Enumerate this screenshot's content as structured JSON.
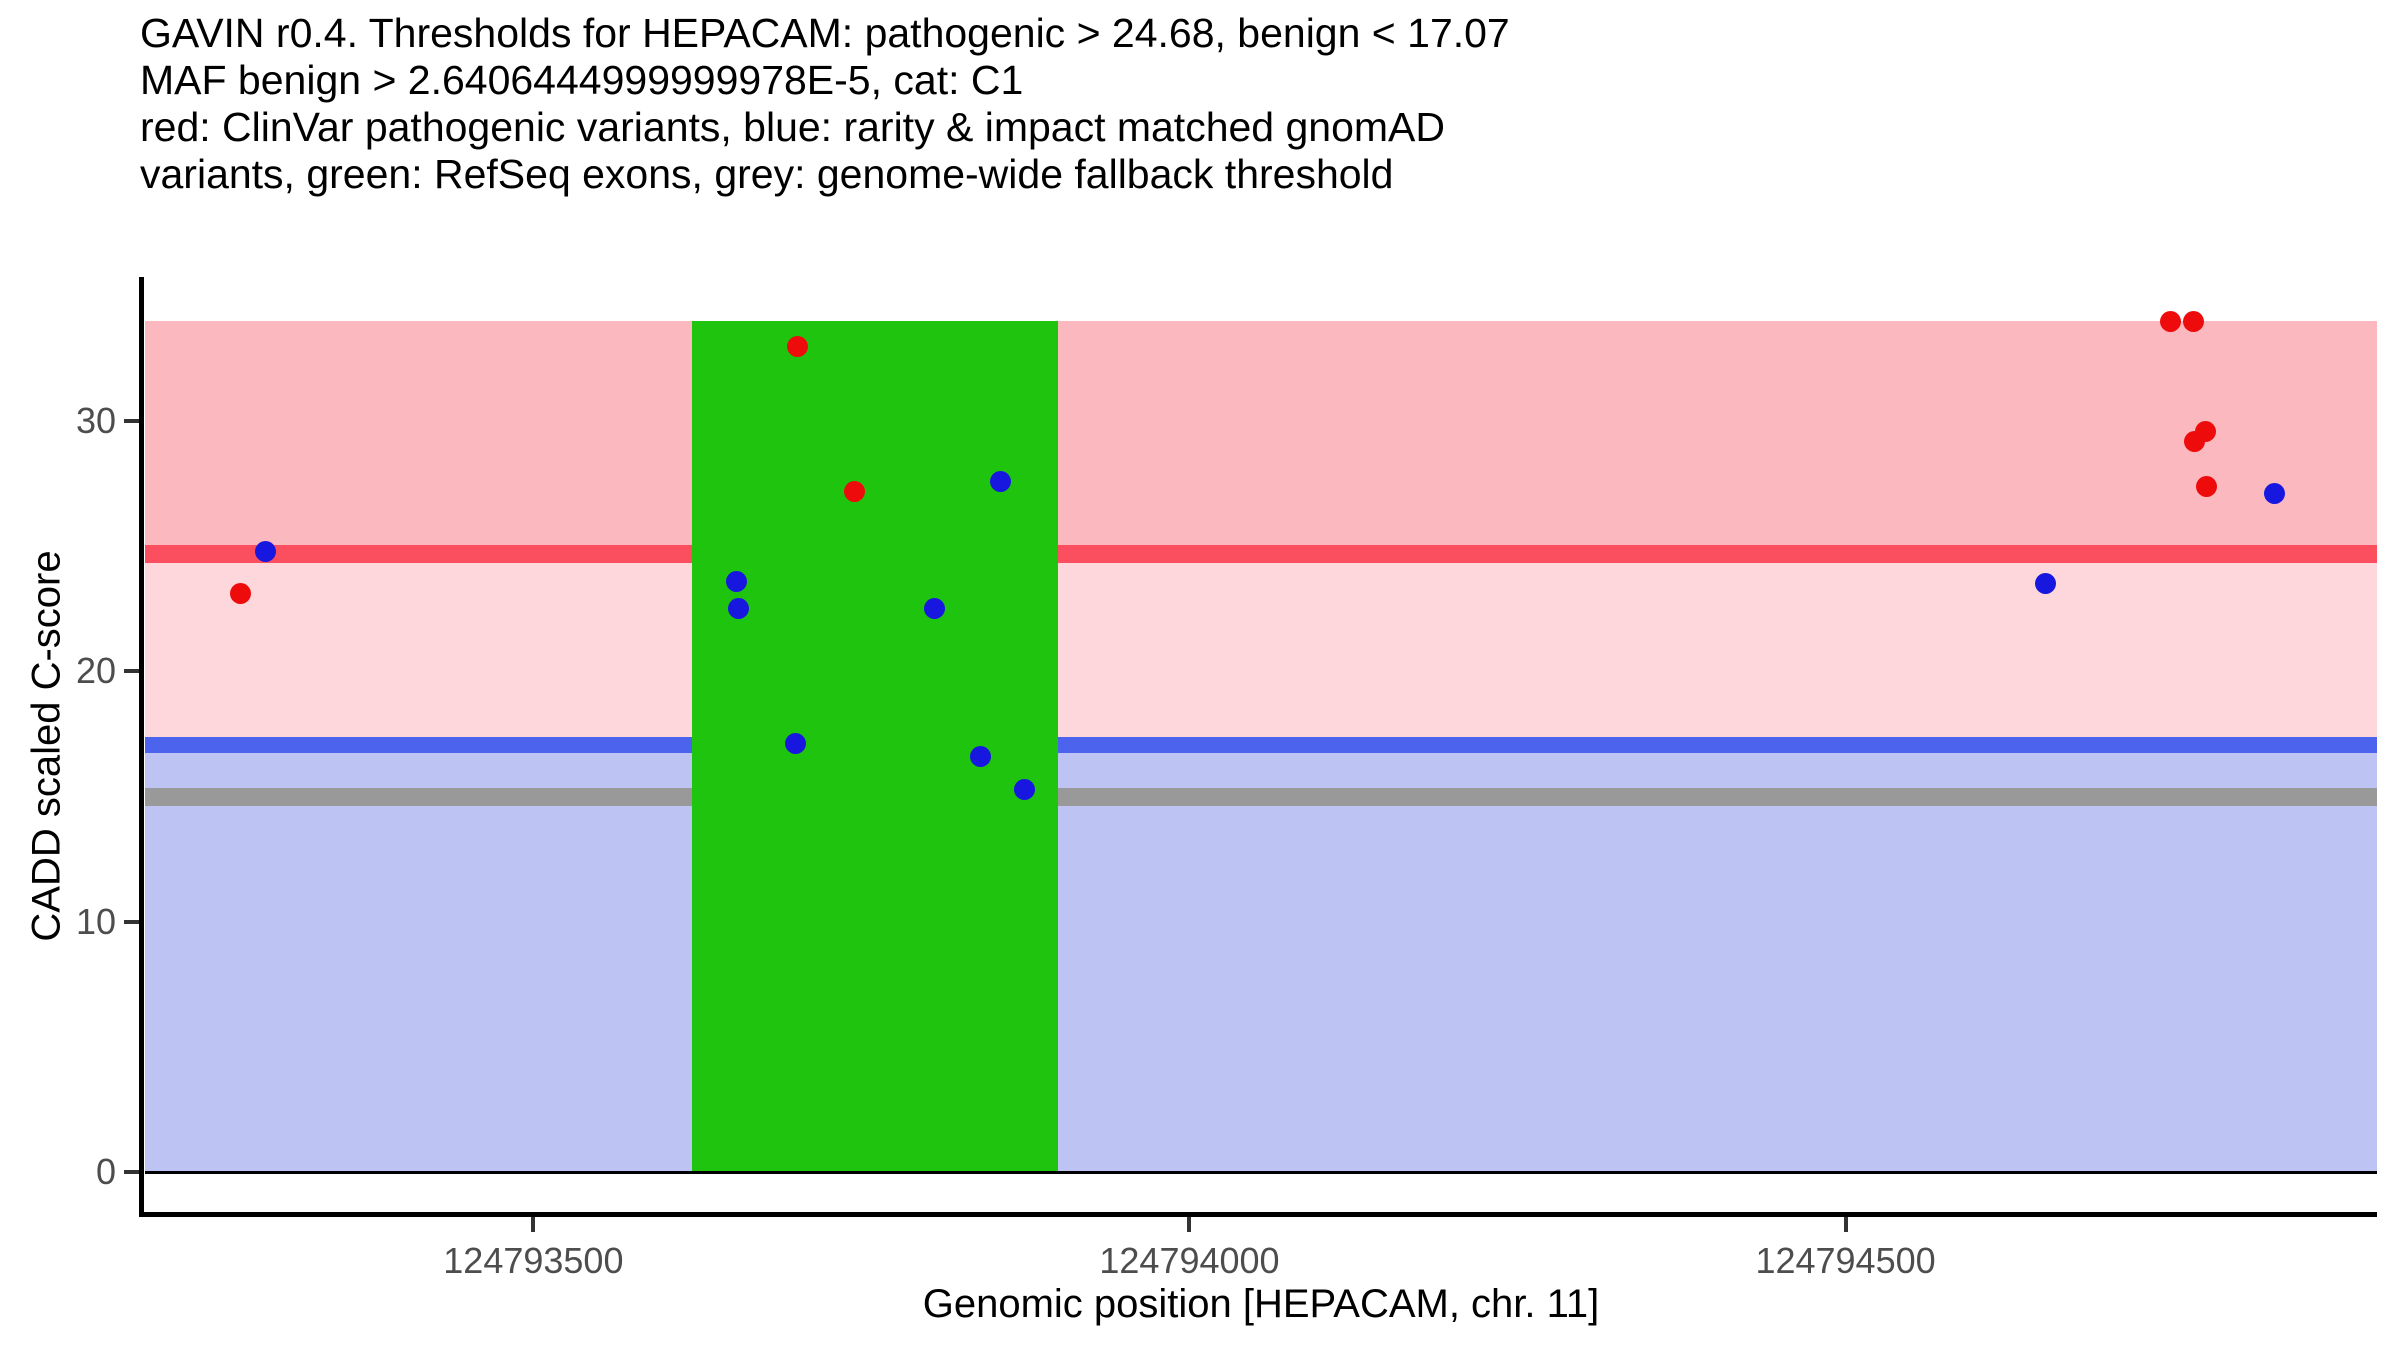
{
  "title": {
    "lines": [
      "GAVIN r0.4. Thresholds for HEPACAM: pathogenic > 24.68, benign < 17.07",
      "MAF benign > 2.6406444999999978E-5, cat: C1",
      "red: ClinVar pathogenic variants, blue: rarity & impact matched gnomAD",
      "variants, green: RefSeq exons, grey: genome-wide fallback threshold"
    ]
  },
  "chart_data": {
    "type": "scatter",
    "title": "GAVIN r0.4. Thresholds for HEPACAM: pathogenic > 24.68, benign < 17.07",
    "subtitle": "MAF benign > 2.6406444999999978E-5, cat: C1",
    "legend_note": "red: ClinVar pathogenic variants, blue: rarity & impact matched gnomAD variants, green: RefSeq exons, grey: genome-wide fallback threshold",
    "xlabel": "Genomic position [HEPACAM, chr. 11]",
    "ylabel": "CADD scaled C-score",
    "gene": "HEPACAM",
    "chromosome": "11",
    "gavin_version": "r0.4",
    "category": "C1",
    "x_ticks": [
      124793500,
      124794000,
      124794500
    ],
    "y_ticks": [
      0,
      10,
      20,
      30
    ],
    "x_range": [
      124793204,
      124794905
    ],
    "y_range": [
      0,
      34
    ],
    "grid": false,
    "legend_position": "in-title",
    "thresholds": {
      "pathogenic_cadd_gt": 24.68,
      "benign_cadd_lt": 17.07,
      "genome_wide_fallback_cadd": 15,
      "maf_benign_gt": "2.6406444999999978E-5"
    },
    "zones": [
      {
        "name": "pathogenic-zone",
        "from_cadd": 24.68,
        "to_cadd": 34,
        "color": "#FBB8BF"
      },
      {
        "name": "intermediate-zone",
        "from_cadd": 17.07,
        "to_cadd": 24.68,
        "color": "#FDD7DC"
      },
      {
        "name": "benign-zone",
        "from_cadd": 0,
        "to_cadd": 17.07,
        "color": "#BDC3F2"
      }
    ],
    "threshold_lines": [
      {
        "name": "pathogenic-threshold-line",
        "cadd": 24.68,
        "color": "#FB4F5F",
        "thickness": 18
      },
      {
        "name": "benign-threshold-line",
        "cadd": 17.07,
        "color": "#4C63EE",
        "thickness": 16
      },
      {
        "name": "fallback-threshold-line",
        "cadd": 15,
        "color": "#999999",
        "thickness": 18
      }
    ],
    "exons": [
      {
        "name": "refseq-exon",
        "start": 124793621,
        "end": 124793900,
        "color": "#1FC40E"
      }
    ],
    "series": [
      {
        "name": "ClinVar pathogenic variants",
        "color": "#EE0B0B",
        "points": [
          {
            "pos": 124793277,
            "cadd": 23.1
          },
          {
            "pos": 124793701,
            "cadd": 33.0
          },
          {
            "pos": 124793745,
            "cadd": 27.2
          },
          {
            "pos": 124794748,
            "cadd": 34.0
          },
          {
            "pos": 124794765,
            "cadd": 34.0
          },
          {
            "pos": 124794766,
            "cadd": 29.2
          },
          {
            "pos": 124794774,
            "cadd": 29.6
          },
          {
            "pos": 124794775,
            "cadd": 27.4
          }
        ]
      },
      {
        "name": "rarity & impact matched gnomAD variants",
        "color": "#1717DF",
        "points": [
          {
            "pos": 124793296,
            "cadd": 24.8
          },
          {
            "pos": 124793655,
            "cadd": 23.6
          },
          {
            "pos": 124793656,
            "cadd": 22.5
          },
          {
            "pos": 124793700,
            "cadd": 17.1
          },
          {
            "pos": 124793806,
            "cadd": 22.5
          },
          {
            "pos": 124793841,
            "cadd": 16.6
          },
          {
            "pos": 124793856,
            "cadd": 27.6
          },
          {
            "pos": 124793874,
            "cadd": 15.3
          },
          {
            "pos": 124794652,
            "cadd": 23.5
          },
          {
            "pos": 124794827,
            "cadd": 27.1
          }
        ]
      }
    ],
    "axis": {
      "tick_label_color": "#4D4D4D",
      "axis_line_color": "#000000",
      "point_radius_px": 10.5
    }
  }
}
